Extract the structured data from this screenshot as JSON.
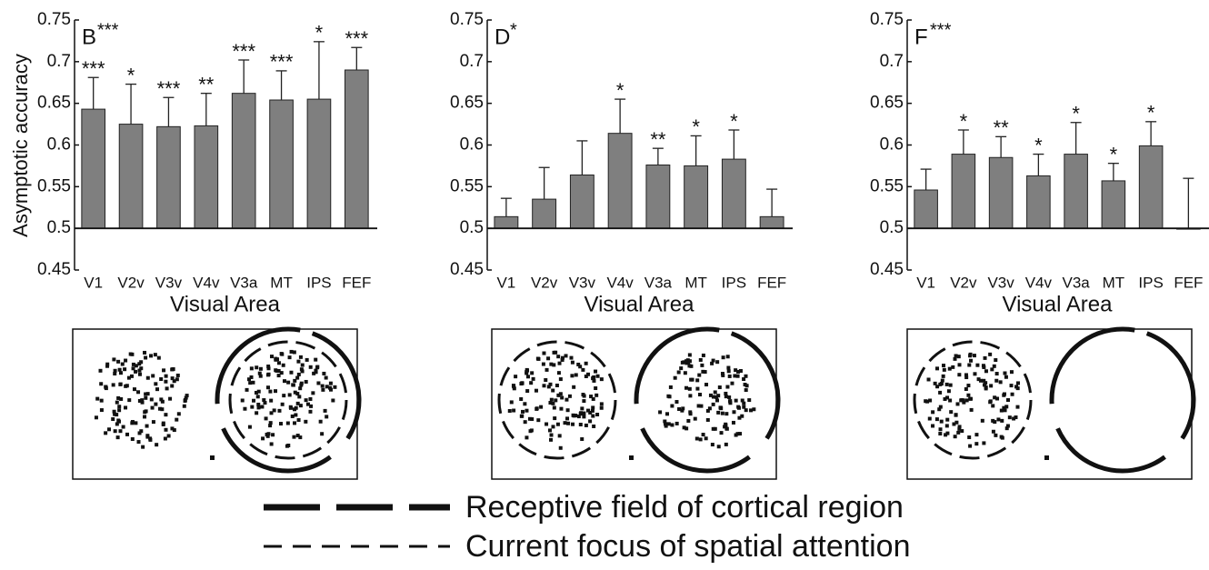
{
  "chart_data": [
    {
      "type": "bar",
      "panel_label": "B",
      "panel_sig": "***",
      "y_label": "Asymptotic accuracy",
      "x_label": "Visual Area",
      "categories": [
        "V1",
        "V2v",
        "V3v",
        "V4v",
        "V3a",
        "MT",
        "IPS",
        "FEF"
      ],
      "values": [
        0.643,
        0.625,
        0.622,
        0.623,
        0.662,
        0.654,
        0.655,
        0.69
      ],
      "errors": [
        0.038,
        0.048,
        0.035,
        0.039,
        0.04,
        0.035,
        0.069,
        0.027
      ],
      "sig_labels": [
        "***",
        "*",
        "***",
        "**",
        "***",
        "***",
        "*",
        "***"
      ],
      "color": "#7f7f7f",
      "reference_line": 0.5,
      "ylim": [
        0.45,
        0.75
      ],
      "yticks": [
        0.45,
        0.5,
        0.55,
        0.6,
        0.65,
        0.7,
        0.75
      ]
    },
    {
      "type": "bar",
      "panel_label": "D",
      "panel_sig": "*",
      "x_label": "Visual Area",
      "categories": [
        "V1",
        "V2v",
        "V3v",
        "V4v",
        "V3a",
        "MT",
        "IPS",
        "FEF"
      ],
      "values": [
        0.514,
        0.535,
        0.564,
        0.614,
        0.576,
        0.575,
        0.583,
        0.514
      ],
      "errors": [
        0.022,
        0.038,
        0.041,
        0.041,
        0.02,
        0.036,
        0.035,
        0.033
      ],
      "sig_labels": [
        null,
        null,
        null,
        "*",
        "**",
        "*",
        "*",
        null
      ],
      "color": "#7f7f7f",
      "reference_line": 0.5,
      "ylim": [
        0.45,
        0.75
      ],
      "yticks": [
        0.45,
        0.5,
        0.55,
        0.6,
        0.65,
        0.7,
        0.75
      ]
    },
    {
      "type": "bar",
      "panel_label": "F",
      "panel_sig": "***",
      "x_label": "Visual Area",
      "categories": [
        "V1",
        "V2v",
        "V3v",
        "V4v",
        "V3a",
        "MT",
        "IPS",
        "FEF"
      ],
      "values": [
        0.546,
        0.589,
        0.585,
        0.563,
        0.589,
        0.557,
        0.599,
        0.499
      ],
      "errors": [
        0.025,
        0.029,
        0.025,
        0.026,
        0.038,
        0.021,
        0.029,
        0.061
      ],
      "sig_labels": [
        null,
        "*",
        "**",
        "*",
        "*",
        "*",
        "*",
        null
      ],
      "color": "#7f7f7f",
      "reference_line": 0.5,
      "ylim": [
        0.45,
        0.75
      ],
      "yticks": [
        0.45,
        0.5,
        0.55,
        0.6,
        0.65,
        0.7,
        0.75
      ]
    }
  ],
  "legend": [
    "Receptive field of cortical region",
    "Current focus of spatial attention"
  ]
}
